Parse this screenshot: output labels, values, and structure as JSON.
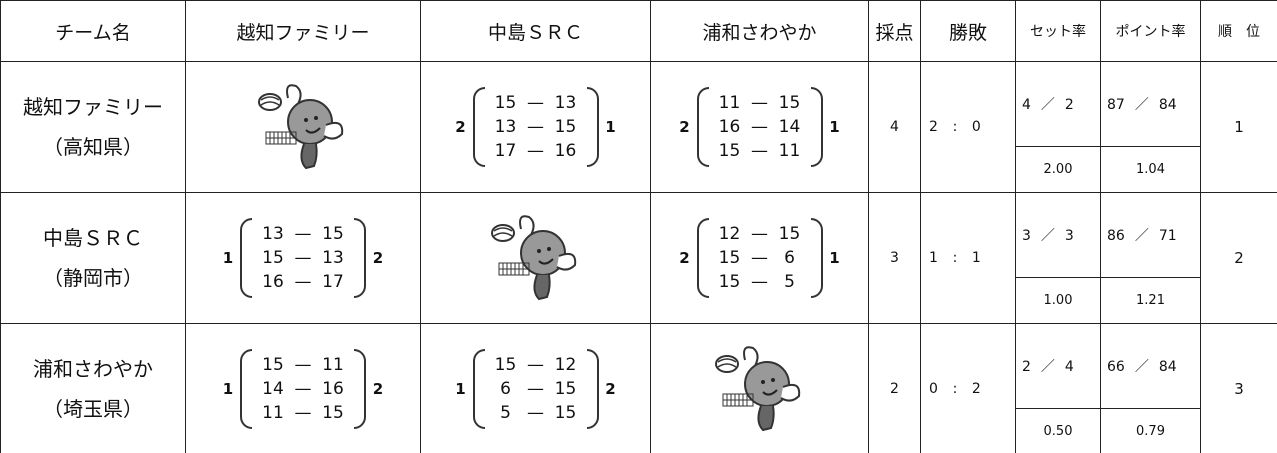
{
  "table": {
    "header": [
      "チーム名",
      "越知ファミリー",
      "中島ＳＲＣ",
      "浦和さわやか",
      "採点",
      "勝敗",
      "セット率",
      "ポイント率",
      "順　位"
    ],
    "rows": [
      {
        "team": "越知ファミリー",
        "region": "（高知県）",
        "matches": [
          null,
          {
            "left": 2,
            "sets": [
              [
                15,
                13
              ],
              [
                13,
                15
              ],
              [
                17,
                16
              ]
            ],
            "right": 1
          },
          {
            "left": 2,
            "sets": [
              [
                11,
                15
              ],
              [
                16,
                14
              ],
              [
                15,
                11
              ]
            ],
            "right": 1
          }
        ],
        "points": 4,
        "record": {
          "won": 2,
          "lost": 0
        },
        "set_ratio": {
          "won": 4,
          "lost": 2,
          "ratio": "2.00"
        },
        "point_ratio": {
          "won": 87,
          "lost": 84,
          "ratio": "1.04"
        },
        "rank": 1
      },
      {
        "team": "中島ＳＲＣ",
        "region": "（静岡市）",
        "matches": [
          {
            "left": 1,
            "sets": [
              [
                13,
                15
              ],
              [
                15,
                13
              ],
              [
                16,
                17
              ]
            ],
            "right": 2
          },
          null,
          {
            "left": 2,
            "sets": [
              [
                12,
                15
              ],
              [
                15,
                6
              ],
              [
                15,
                5
              ]
            ],
            "right": 1
          }
        ],
        "points": 3,
        "record": {
          "won": 1,
          "lost": 1
        },
        "set_ratio": {
          "won": 3,
          "lost": 3,
          "ratio": "1.00"
        },
        "point_ratio": {
          "won": 86,
          "lost": 71,
          "ratio": "1.21"
        },
        "rank": 2
      },
      {
        "team": "浦和さわやか",
        "region": "（埼玉県）",
        "matches": [
          {
            "left": 1,
            "sets": [
              [
                15,
                11
              ],
              [
                14,
                16
              ],
              [
                11,
                15
              ]
            ],
            "right": 2
          },
          {
            "left": 1,
            "sets": [
              [
                15,
                12
              ],
              [
                6,
                15
              ],
              [
                5,
                15
              ]
            ],
            "right": 2
          },
          null
        ],
        "points": 2,
        "record": {
          "won": 0,
          "lost": 2
        },
        "set_ratio": {
          "won": 2,
          "lost": 4,
          "ratio": "0.50"
        },
        "point_ratio": {
          "won": 66,
          "lost": 84,
          "ratio": "0.79"
        },
        "rank": 3
      }
    ]
  }
}
